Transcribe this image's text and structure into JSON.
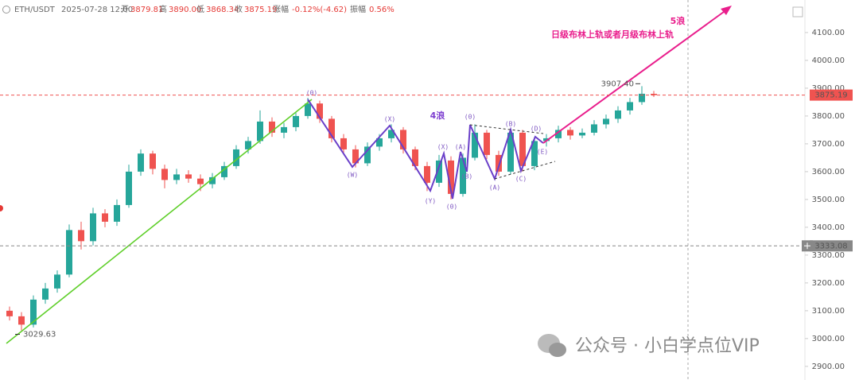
{
  "chart_data": {
    "type": "candlestick",
    "header": {
      "symbol": "ETH/USDT",
      "time": "2025-07-28 12:00",
      "open_label": "开",
      "open": "3879.81",
      "high_label": "高",
      "high": "3890.00",
      "low_label": "低",
      "low": "3868.34",
      "close_label": "收",
      "close": "3875.19",
      "change_label": "涨幅",
      "change": "-0.12%(-4.62)",
      "amplitude_label": "振幅",
      "amplitude": "0.56%"
    },
    "up_color": "#26a69a",
    "down_color": "#ef5350",
    "ohlc": [
      [
        3100,
        3115,
        3065,
        3080
      ],
      [
        3080,
        3095,
        3029.63,
        3050
      ],
      [
        3050,
        3155,
        3040,
        3140
      ],
      [
        3140,
        3200,
        3125,
        3180
      ],
      [
        3180,
        3245,
        3165,
        3230
      ],
      [
        3230,
        3410,
        3220,
        3390
      ],
      [
        3390,
        3420,
        3320,
        3350
      ],
      [
        3350,
        3470,
        3335,
        3450
      ],
      [
        3450,
        3465,
        3400,
        3420
      ],
      [
        3420,
        3500,
        3405,
        3480
      ],
      [
        3480,
        3625,
        3470,
        3600
      ],
      [
        3600,
        3680,
        3585,
        3665
      ],
      [
        3665,
        3675,
        3590,
        3610
      ],
      [
        3610,
        3625,
        3540,
        3570
      ],
      [
        3570,
        3610,
        3555,
        3590
      ],
      [
        3590,
        3605,
        3560,
        3575
      ],
      [
        3575,
        3590,
        3530,
        3555
      ],
      [
        3555,
        3595,
        3540,
        3580
      ],
      [
        3580,
        3635,
        3570,
        3620
      ],
      [
        3620,
        3695,
        3610,
        3680
      ],
      [
        3680,
        3725,
        3665,
        3710
      ],
      [
        3710,
        3820,
        3700,
        3780
      ],
      [
        3780,
        3795,
        3725,
        3740
      ],
      [
        3740,
        3775,
        3720,
        3760
      ],
      [
        3760,
        3815,
        3745,
        3800
      ],
      [
        3800,
        3865,
        3790,
        3845
      ],
      [
        3845,
        3855,
        3775,
        3790
      ],
      [
        3790,
        3800,
        3705,
        3720
      ],
      [
        3720,
        3735,
        3665,
        3680
      ],
      [
        3680,
        3695,
        3615,
        3630
      ],
      [
        3630,
        3705,
        3620,
        3690
      ],
      [
        3690,
        3735,
        3675,
        3720
      ],
      [
        3720,
        3770,
        3705,
        3750
      ],
      [
        3750,
        3760,
        3665,
        3680
      ],
      [
        3680,
        3690,
        3605,
        3620
      ],
      [
        3620,
        3635,
        3530,
        3560
      ],
      [
        3560,
        3660,
        3545,
        3640
      ],
      [
        3640,
        3655,
        3500,
        3520
      ],
      [
        3520,
        3665,
        3510,
        3650
      ],
      [
        3650,
        3770,
        3640,
        3740
      ],
      [
        3740,
        3750,
        3645,
        3660
      ],
      [
        3660,
        3675,
        3585,
        3600
      ],
      [
        3600,
        3755,
        3590,
        3740
      ],
      [
        3740,
        3750,
        3600,
        3620
      ],
      [
        3620,
        3725,
        3605,
        3710
      ],
      [
        3710,
        3735,
        3690,
        3720
      ],
      [
        3720,
        3765,
        3705,
        3750
      ],
      [
        3750,
        3760,
        3715,
        3730
      ],
      [
        3730,
        3755,
        3720,
        3740
      ],
      [
        3740,
        3785,
        3730,
        3770
      ],
      [
        3770,
        3805,
        3755,
        3790
      ],
      [
        3790,
        3835,
        3775,
        3820
      ],
      [
        3820,
        3865,
        3805,
        3850
      ],
      [
        3850,
        3907.4,
        3840,
        3880
      ],
      [
        3879.81,
        3890,
        3868.34,
        3875.19
      ]
    ],
    "ylim": [
      2851,
      4217
    ],
    "yticks": [
      {
        "value": 2900,
        "label": "2900.00"
      },
      {
        "value": 3000,
        "label": "3000.00"
      },
      {
        "value": 3100,
        "label": "3100.00"
      },
      {
        "value": 3200,
        "label": "3200.00"
      },
      {
        "value": 3300,
        "label": "3300.00"
      },
      {
        "value": 3400,
        "label": "3400.00"
      },
      {
        "value": 3500,
        "label": "3500.00"
      },
      {
        "value": 3600,
        "label": "3600.00"
      },
      {
        "value": 3700,
        "label": "3700.00"
      },
      {
        "value": 3800,
        "label": "3800.00"
      },
      {
        "value": 3900,
        "label": "3900.00"
      },
      {
        "value": 4000,
        "label": "4000.00"
      },
      {
        "value": 4100,
        "label": "4100.00"
      }
    ],
    "price_lines": [
      {
        "value": 3875.19,
        "color": "#ef5350"
      },
      {
        "value": 3333.08,
        "color": "#888888"
      }
    ],
    "high_mark": {
      "value": 3907.4,
      "label": "3907.40"
    },
    "low_mark": 3029.63,
    "annotations": {
      "wave5": "5浪",
      "target": "日级布林上轨或者月级布林上轨",
      "wave4": "4浪"
    },
    "wave_labels": [
      "(0)",
      "(W)",
      "(X)",
      "(Y)",
      "(X)",
      "(0)",
      "(A)",
      "(B)",
      "(0)",
      "(A)",
      "(B)",
      "(C)",
      "(D)",
      "(E)"
    ],
    "watermark": "公众号 · 小白学点位VIP"
  }
}
